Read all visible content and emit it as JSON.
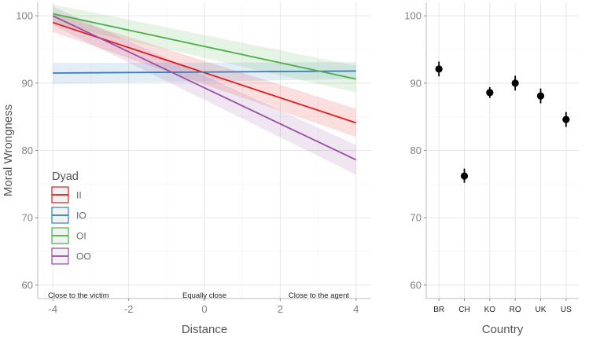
{
  "chart_data": [
    {
      "type": "line",
      "xlabel": "Distance",
      "ylabel": "Moral Wrongness",
      "xlim": [
        -4.4,
        4.4
      ],
      "ylim": [
        58,
        102
      ],
      "xticks": [
        -4,
        -2,
        0,
        2,
        4
      ],
      "yticks": [
        60,
        70,
        80,
        90,
        100
      ],
      "grid": true,
      "annotations": [
        {
          "x": -3.7,
          "text": "Close to the victim"
        },
        {
          "x": 0,
          "text": "Equally close"
        },
        {
          "x": 3.6,
          "text": "Close to the agent"
        }
      ],
      "legend": {
        "title": "Dyad",
        "position": "bottom-left"
      },
      "series": [
        {
          "name": "II",
          "color": "#e41a1c",
          "x": [
            -4,
            4
          ],
          "y": [
            99.0,
            84.1
          ],
          "ci_lo": [
            97.6,
            82.0
          ],
          "ci_hi": [
            100.4,
            86.2
          ]
        },
        {
          "name": "IO",
          "color": "#377eb8",
          "x": [
            -4,
            4
          ],
          "y": [
            91.5,
            91.8
          ],
          "ci_lo": [
            89.9,
            90.6
          ],
          "ci_hi": [
            93.0,
            93.1
          ]
        },
        {
          "name": "OI",
          "color": "#4daf4a",
          "x": [
            -4,
            4
          ],
          "y": [
            100.3,
            90.6
          ],
          "ci_lo": [
            98.9,
            88.6
          ],
          "ci_hi": [
            101.7,
            92.6
          ]
        },
        {
          "name": "OO",
          "color": "#984ea3",
          "x": [
            -4,
            4
          ],
          "y": [
            100.0,
            78.6
          ],
          "ci_lo": [
            98.6,
            76.4
          ],
          "ci_hi": [
            101.4,
            80.8
          ]
        }
      ]
    },
    {
      "type": "scatter",
      "xlabel": "Country",
      "ylabel": "",
      "ylim": [
        58,
        102
      ],
      "yticks": [
        60,
        70,
        80,
        90,
        100
      ],
      "grid": true,
      "categories": [
        "BR",
        "CH",
        "KO",
        "RO",
        "UK",
        "US"
      ],
      "values": [
        92.1,
        76.2,
        88.6,
        90.0,
        88.1,
        84.6
      ],
      "error_lo": [
        91.0,
        75.2,
        87.8,
        88.9,
        87.0,
        83.5
      ],
      "error_hi": [
        93.2,
        77.3,
        89.4,
        91.1,
        89.2,
        85.7
      ],
      "color": "#000000"
    }
  ]
}
